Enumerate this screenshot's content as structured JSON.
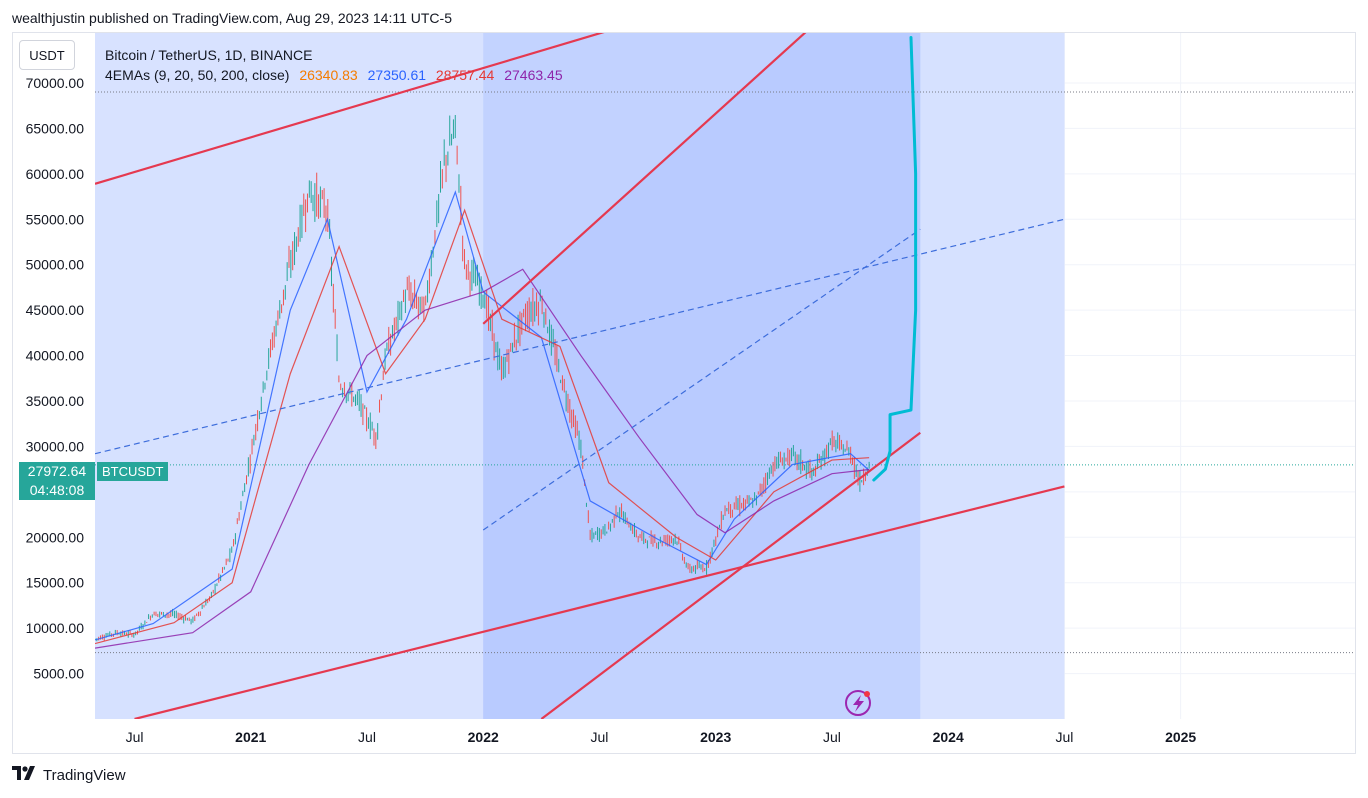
{
  "header": {
    "publisher_line": "wealthjustin published on TradingView.com, Aug 29, 2023 14:11 UTC-5"
  },
  "toolbar": {
    "currency": "USDT"
  },
  "legend": {
    "symbol_line": "Bitcoin / TetherUS, 1D, BINANCE",
    "indicator_name": "4EMAs (9, 20, 50, 200, close)",
    "ema_values": [
      {
        "value": "26340.83",
        "color": "#f57c00"
      },
      {
        "value": "27350.61",
        "color": "#2962ff"
      },
      {
        "value": "28757.44",
        "color": "#e53935"
      },
      {
        "value": "27463.45",
        "color": "#8e24aa"
      }
    ]
  },
  "price_tag": {
    "price": "27972.64",
    "countdown": "04:48:08",
    "symbol": "BTCUSDT"
  },
  "footer": {
    "brand": "TradingView"
  },
  "chart_data": {
    "type": "line",
    "title": "Bitcoin / TetherUS, 1D, BINANCE",
    "y_axis": {
      "ylim": [
        0,
        75500
      ],
      "ticks": [
        5000,
        10000,
        15000,
        20000,
        25000,
        30000,
        35000,
        40000,
        45000,
        50000,
        55000,
        60000,
        65000,
        70000
      ],
      "tick_labels": [
        "5000.00",
        "10000.00",
        "15000.00",
        "20000.00",
        "25000.00",
        "30000.00",
        "35000.00",
        "40000.00",
        "45000.00",
        "50000.00",
        "55000.00",
        "60000.00",
        "65000.00",
        "70000.00"
      ]
    },
    "x_axis": {
      "range": [
        2020.33,
        2025.75
      ],
      "ticks": [
        {
          "t": 2020.5,
          "label": "Jul",
          "bold": false
        },
        {
          "t": 2021.0,
          "label": "2021",
          "bold": true
        },
        {
          "t": 2021.5,
          "label": "Jul",
          "bold": false
        },
        {
          "t": 2022.0,
          "label": "2022",
          "bold": true
        },
        {
          "t": 2022.5,
          "label": "Jul",
          "bold": false
        },
        {
          "t": 2023.0,
          "label": "2023",
          "bold": true
        },
        {
          "t": 2023.5,
          "label": "Jul",
          "bold": false
        },
        {
          "t": 2024.0,
          "label": "2024",
          "bold": true
        },
        {
          "t": 2024.5,
          "label": "Jul",
          "bold": false
        },
        {
          "t": 2025.0,
          "label": "2025",
          "bold": true
        }
      ]
    },
    "price_series": {
      "name": "BTCUSDT",
      "points": [
        [
          2020.33,
          8800
        ],
        [
          2020.42,
          9500
        ],
        [
          2020.5,
          9300
        ],
        [
          2020.58,
          11600
        ],
        [
          2020.67,
          11500
        ],
        [
          2020.75,
          10800
        ],
        [
          2020.83,
          13500
        ],
        [
          2020.92,
          18500
        ],
        [
          2021.0,
          29000
        ],
        [
          2021.08,
          40000
        ],
        [
          2021.17,
          50000
        ],
        [
          2021.25,
          58000
        ],
        [
          2021.33,
          56000
        ],
        [
          2021.38,
          37000
        ],
        [
          2021.46,
          35000
        ],
        [
          2021.54,
          31000
        ],
        [
          2021.58,
          40000
        ],
        [
          2021.67,
          47000
        ],
        [
          2021.75,
          45000
        ],
        [
          2021.83,
          61000
        ],
        [
          2021.88,
          65000
        ],
        [
          2021.92,
          50000
        ],
        [
          2022.0,
          47000
        ],
        [
          2022.08,
          38000
        ],
        [
          2022.17,
          44000
        ],
        [
          2022.25,
          46000
        ],
        [
          2022.33,
          38000
        ],
        [
          2022.42,
          30000
        ],
        [
          2022.46,
          20000
        ],
        [
          2022.54,
          21000
        ],
        [
          2022.58,
          23000
        ],
        [
          2022.67,
          20000
        ],
        [
          2022.75,
          19500
        ],
        [
          2022.83,
          20000
        ],
        [
          2022.88,
          16500
        ],
        [
          2022.96,
          16700
        ],
        [
          2023.04,
          23000
        ],
        [
          2023.17,
          24000
        ],
        [
          2023.25,
          28000
        ],
        [
          2023.33,
          29000
        ],
        [
          2023.42,
          27000
        ],
        [
          2023.5,
          30500
        ],
        [
          2023.58,
          29300
        ],
        [
          2023.62,
          26000
        ],
        [
          2023.66,
          27972
        ]
      ]
    },
    "ema_series": [
      {
        "name": "EMA 20",
        "color": "#2962ff",
        "points": [
          [
            2020.33,
            8700
          ],
          [
            2020.58,
            10500
          ],
          [
            2020.92,
            16500
          ],
          [
            2021.17,
            45000
          ],
          [
            2021.33,
            55000
          ],
          [
            2021.5,
            36000
          ],
          [
            2021.67,
            44000
          ],
          [
            2021.88,
            58000
          ],
          [
            2022.0,
            47000
          ],
          [
            2022.25,
            42000
          ],
          [
            2022.46,
            24000
          ],
          [
            2022.75,
            19800
          ],
          [
            2022.96,
            17000
          ],
          [
            2023.08,
            22000
          ],
          [
            2023.33,
            28000
          ],
          [
            2023.58,
            29200
          ],
          [
            2023.66,
            27350
          ]
        ]
      },
      {
        "name": "EMA 50",
        "color": "#e53935",
        "points": [
          [
            2020.33,
            8300
          ],
          [
            2020.67,
            10600
          ],
          [
            2020.92,
            15000
          ],
          [
            2021.17,
            38000
          ],
          [
            2021.38,
            52000
          ],
          [
            2021.58,
            38000
          ],
          [
            2021.75,
            44000
          ],
          [
            2021.92,
            56000
          ],
          [
            2022.08,
            44000
          ],
          [
            2022.33,
            41000
          ],
          [
            2022.54,
            26000
          ],
          [
            2022.83,
            20000
          ],
          [
            2023.0,
            17500
          ],
          [
            2023.25,
            25000
          ],
          [
            2023.5,
            28500
          ],
          [
            2023.66,
            28757
          ]
        ]
      },
      {
        "name": "EMA 200",
        "color": "#8e24aa",
        "points": [
          [
            2020.33,
            7800
          ],
          [
            2020.75,
            9500
          ],
          [
            2021.0,
            14000
          ],
          [
            2021.25,
            28000
          ],
          [
            2021.5,
            40000
          ],
          [
            2021.75,
            45000
          ],
          [
            2022.0,
            47000
          ],
          [
            2022.17,
            49500
          ],
          [
            2022.42,
            40000
          ],
          [
            2022.67,
            31000
          ],
          [
            2022.92,
            22500
          ],
          [
            2023.04,
            20500
          ],
          [
            2023.25,
            24000
          ],
          [
            2023.5,
            27000
          ],
          [
            2023.66,
            27463
          ]
        ]
      }
    ],
    "drawings": {
      "channel_lines": [
        {
          "from": [
            2020.33,
            58900
          ],
          "to": [
            2023.75,
            85000
          ],
          "color": "#e53950"
        },
        {
          "from": [
            2020.5,
            0
          ],
          "to": [
            2024.5,
            25600
          ],
          "color": "#e53950"
        },
        {
          "from": [
            2022.0,
            43500
          ],
          "to": [
            2023.88,
            87000
          ],
          "color": "#e53950"
        },
        {
          "from": [
            2022.25,
            0
          ],
          "to": [
            2023.88,
            31500
          ],
          "color": "#e53950"
        }
      ],
      "dashed_lines": [
        {
          "from": [
            2020.33,
            29200
          ],
          "to": [
            2024.5,
            55000
          ],
          "color": "#3d6ddb"
        },
        {
          "from": [
            2022.0,
            20800
          ],
          "to": [
            2023.88,
            53900
          ],
          "color": "#3d6ddb"
        }
      ],
      "shaded_regions": [
        {
          "from_t": 2020.33,
          "to_t": 2024.5,
          "color": "#d6e0ff"
        },
        {
          "from_t": 2022.0,
          "to_t": 2023.88,
          "color": "#b3c6ff"
        }
      ],
      "projection_path": [
        [
          2023.68,
          26300
        ],
        [
          2023.73,
          27500
        ],
        [
          2023.75,
          29500
        ],
        [
          2023.75,
          33500
        ],
        [
          2023.84,
          34000
        ],
        [
          2023.86,
          45000
        ],
        [
          2023.86,
          60000
        ],
        [
          2023.84,
          75000
        ]
      ],
      "projection_color": "#00bcd4",
      "hlines": [
        69000,
        7300
      ]
    }
  }
}
